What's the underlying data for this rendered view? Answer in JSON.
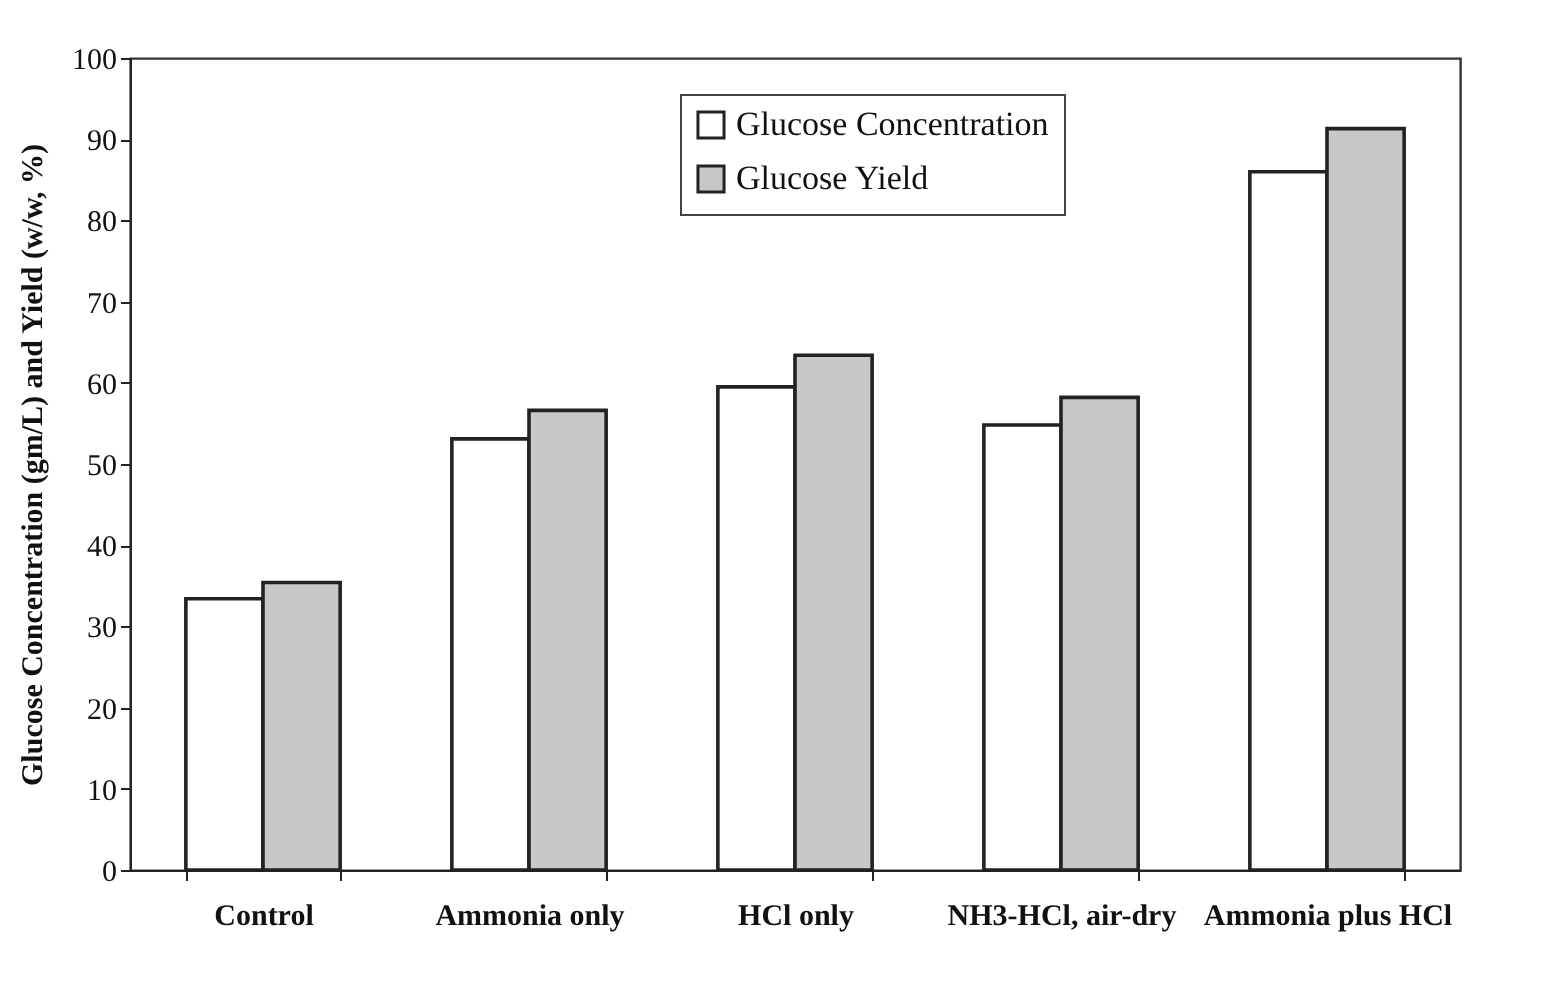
{
  "chart_data": {
    "type": "bar",
    "ylabel": "Glucose Concentration (gm/L) and Yield (w/w, %)",
    "categories": [
      "Control",
      "Ammonia\nonly",
      "HCl only",
      "NH3-HCl,\nair-dry",
      "Ammonia\nplus HCl"
    ],
    "series": [
      {
        "name": "Glucose Concentration",
        "color": "#ffffff",
        "values": [
          33.4,
          53.1,
          59.5,
          54.8,
          86.0
        ]
      },
      {
        "name": "Glucose Yield",
        "color": "#c8c8c8",
        "values": [
          35.4,
          56.6,
          63.4,
          58.2,
          91.3
        ]
      }
    ],
    "ylim": [
      0,
      100
    ],
    "yticks": [
      0,
      10,
      20,
      30,
      40,
      50,
      60,
      70,
      80,
      90,
      100
    ],
    "grid": false,
    "legend": "top right"
  }
}
